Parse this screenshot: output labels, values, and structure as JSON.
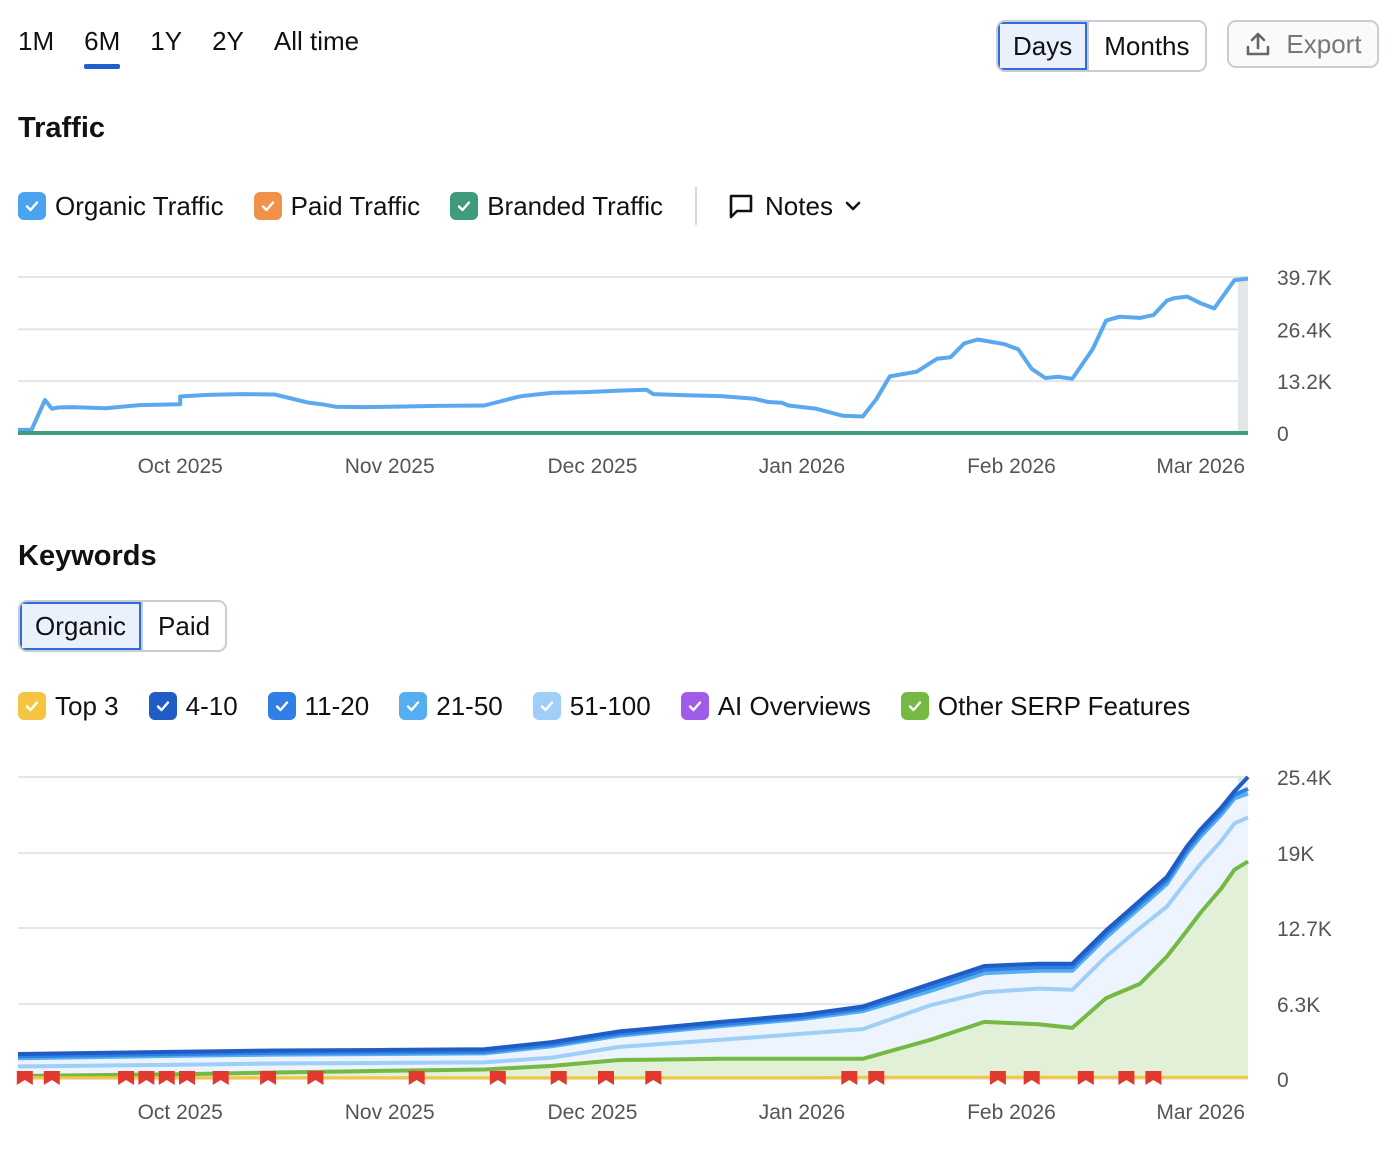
{
  "range_tabs": [
    {
      "label": "1M",
      "active": false
    },
    {
      "label": "6M",
      "active": true
    },
    {
      "label": "1Y",
      "active": false
    },
    {
      "label": "2Y",
      "active": false
    },
    {
      "label": "All time",
      "active": false
    }
  ],
  "period_toggle": {
    "days": "Days",
    "months": "Months",
    "selected": "Days"
  },
  "export": {
    "label": "Export",
    "icon": "upload-icon"
  },
  "traffic": {
    "title": "Traffic",
    "legend": [
      {
        "label": "Organic Traffic",
        "color": "#4ba3f0",
        "checked": true
      },
      {
        "label": "Paid Traffic",
        "color": "#f2914c",
        "checked": true
      },
      {
        "label": "Branded Traffic",
        "color": "#3f9b7c",
        "checked": true
      }
    ],
    "notes": {
      "label": "Notes",
      "icon": "comment-icon"
    }
  },
  "keywords": {
    "title": "Keywords",
    "toggle": {
      "organic": "Organic",
      "paid": "Paid",
      "selected": "Organic"
    },
    "legend": [
      {
        "label": "Top 3",
        "color": "#f5c542",
        "checked": true
      },
      {
        "label": "4-10",
        "color": "#1f5cc4",
        "checked": true
      },
      {
        "label": "11-20",
        "color": "#2f7fe5",
        "checked": true
      },
      {
        "label": "21-50",
        "color": "#55aef0",
        "checked": true
      },
      {
        "label": "51-100",
        "color": "#9fcff7",
        "checked": true
      },
      {
        "label": "AI Overviews",
        "color": "#a05ce8",
        "checked": true
      },
      {
        "label": "Other SERP Features",
        "color": "#74b944",
        "checked": true
      }
    ]
  },
  "chart_data": [
    {
      "type": "line",
      "title": "Traffic",
      "x_type": "date",
      "x_ticks": [
        "Oct 2025",
        "Nov 2025",
        "Dec 2025",
        "Jan 2026",
        "Feb 2026",
        "Mar 2026"
      ],
      "y_ticks": [
        "0",
        "13.2K",
        "26.4K",
        "39.7K"
      ],
      "ylim": [
        0,
        39700
      ],
      "xlim": [
        "2025-09-07",
        "2026-03-08"
      ],
      "grid": true,
      "series": [
        {
          "name": "Organic Traffic",
          "color": "#5aa8ee",
          "x": [
            "2025-09-07",
            "2025-09-09",
            "2025-09-11",
            "2025-09-12",
            "2025-09-13",
            "2025-09-15",
            "2025-09-20",
            "2025-09-25",
            "2025-10-01",
            "2025-10-01",
            "2025-10-05",
            "2025-10-10",
            "2025-10-15",
            "2025-10-20",
            "2025-10-22",
            "2025-10-24",
            "2025-10-28",
            "2025-11-01",
            "2025-11-08",
            "2025-11-15",
            "2025-11-20",
            "2025-11-21",
            "2025-11-25",
            "2025-11-30",
            "2025-12-05",
            "2025-12-09",
            "2025-12-10",
            "2025-12-15",
            "2025-12-20",
            "2025-12-25",
            "2025-12-27",
            "2025-12-29",
            "2025-12-30",
            "2026-01-03",
            "2026-01-07",
            "2026-01-10",
            "2026-01-12",
            "2026-01-14",
            "2026-01-18",
            "2026-01-21",
            "2026-01-23",
            "2026-01-25",
            "2026-01-27",
            "2026-01-31",
            "2026-02-02",
            "2026-02-04",
            "2026-02-06",
            "2026-02-08",
            "2026-02-10",
            "2026-02-13",
            "2026-02-15",
            "2026-02-17",
            "2026-02-20",
            "2026-02-22",
            "2026-02-24",
            "2026-02-25",
            "2026-02-27",
            "2026-03-01",
            "2026-03-03",
            "2026-03-06",
            "2026-03-08"
          ],
          "values": [
            800,
            800,
            8400,
            6200,
            6500,
            6600,
            6300,
            7100,
            7300,
            9300,
            9700,
            9900,
            9800,
            7700,
            7300,
            6700,
            6600,
            6700,
            6900,
            7000,
            9200,
            9500,
            10200,
            10400,
            10800,
            11000,
            9900,
            9600,
            9400,
            8700,
            7900,
            7700,
            7000,
            6200,
            4400,
            4200,
            8600,
            14400,
            15600,
            18900,
            19300,
            22800,
            23800,
            22600,
            21300,
            16300,
            14000,
            14300,
            13800,
            21300,
            28600,
            29600,
            29300,
            30000,
            33700,
            34300,
            34700,
            33000,
            31700,
            38900,
            39300
          ]
        },
        {
          "name": "Paid Traffic",
          "color": "#f2914c",
          "x": [
            "2025-09-07",
            "2026-03-08"
          ],
          "values": [
            0,
            0
          ]
        },
        {
          "name": "Branded Traffic",
          "color": "#3f9b7c",
          "x": [
            "2025-09-07",
            "2026-03-08"
          ],
          "values": [
            0,
            0
          ]
        }
      ]
    },
    {
      "type": "area",
      "title": "Keywords",
      "stacked": false,
      "x_type": "date",
      "x_ticks": [
        "Oct 2025",
        "Nov 2025",
        "Dec 2025",
        "Jan 2026",
        "Feb 2026",
        "Mar 2026"
      ],
      "y_ticks": [
        "0",
        "6.3K",
        "12.7K",
        "19K",
        "25.4K"
      ],
      "ylim": [
        0,
        25400
      ],
      "xlim": [
        "2025-09-07",
        "2026-03-08"
      ],
      "grid": true,
      "x": [
        "2025-09-07",
        "2025-10-01",
        "2025-10-15",
        "2025-11-01",
        "2025-11-15",
        "2025-11-25",
        "2025-12-05",
        "2025-12-20",
        "2026-01-01",
        "2026-01-10",
        "2026-01-20",
        "2026-01-28",
        "2026-02-05",
        "2026-02-10",
        "2026-02-15",
        "2026-02-20",
        "2026-02-24",
        "2026-02-27",
        "2026-03-01",
        "2026-03-04",
        "2026-03-06",
        "2026-03-08"
      ],
      "series": [
        {
          "name": "Top 3",
          "color": "#f5c542",
          "values": [
            100,
            100,
            100,
            100,
            100,
            100,
            100,
            100,
            100,
            150,
            150,
            150,
            150,
            150,
            150,
            150,
            150,
            150,
            150,
            150,
            150,
            150
          ]
        },
        {
          "name": "4-10",
          "color": "#1f5cc4",
          "values": [
            2100,
            2300,
            2400,
            2450,
            2500,
            3100,
            4000,
            4800,
            5400,
            6100,
            8000,
            9500,
            9700,
            9700,
            12500,
            15000,
            17000,
            19600,
            21000,
            22800,
            24200,
            25400
          ]
        },
        {
          "name": "11-20",
          "color": "#2f7fe5",
          "values": [
            1900,
            2100,
            2200,
            2250,
            2300,
            2900,
            3800,
            4600,
            5200,
            5900,
            7700,
            9200,
            9400,
            9400,
            12200,
            14700,
            16700,
            19300,
            20700,
            22500,
            23900,
            24400
          ]
        },
        {
          "name": "21-50",
          "color": "#55aef0",
          "values": [
            1750,
            1950,
            2050,
            2100,
            2150,
            2750,
            3650,
            4450,
            5050,
            5700,
            7400,
            8900,
            9100,
            9100,
            11900,
            14400,
            16400,
            19000,
            20400,
            22200,
            23600,
            24000
          ]
        },
        {
          "name": "51-100",
          "color": "#9fcff7",
          "values": [
            1050,
            1200,
            1300,
            1350,
            1400,
            1800,
            2700,
            3300,
            3800,
            4200,
            6200,
            7300,
            7600,
            7500,
            10300,
            12700,
            14500,
            16700,
            18100,
            20000,
            21500,
            22000
          ]
        },
        {
          "name": "AI Overviews",
          "color": "#a05ce8",
          "values": [
            0,
            0,
            0,
            0,
            0,
            0,
            0,
            0,
            0,
            0,
            0,
            0,
            0,
            0,
            0,
            0,
            0,
            0,
            0,
            0,
            0,
            0
          ]
        },
        {
          "name": "Other SERP Features",
          "color": "#74b944",
          "values": [
            250,
            400,
            550,
            700,
            800,
            1100,
            1600,
            1700,
            1700,
            1700,
            3300,
            4800,
            4600,
            4300,
            6800,
            8000,
            10300,
            12500,
            14000,
            16000,
            17600,
            18300
          ]
        }
      ],
      "notes_markers": [
        "2025-09-08",
        "2025-09-12",
        "2025-09-23",
        "2025-09-26",
        "2025-09-29",
        "2025-10-02",
        "2025-10-07",
        "2025-10-14",
        "2025-10-21",
        "2025-11-05",
        "2025-11-17",
        "2025-11-26",
        "2025-12-03",
        "2025-12-10",
        "2026-01-08",
        "2026-01-12",
        "2026-01-30",
        "2026-02-04",
        "2026-02-12",
        "2026-02-18",
        "2026-02-22"
      ]
    }
  ]
}
